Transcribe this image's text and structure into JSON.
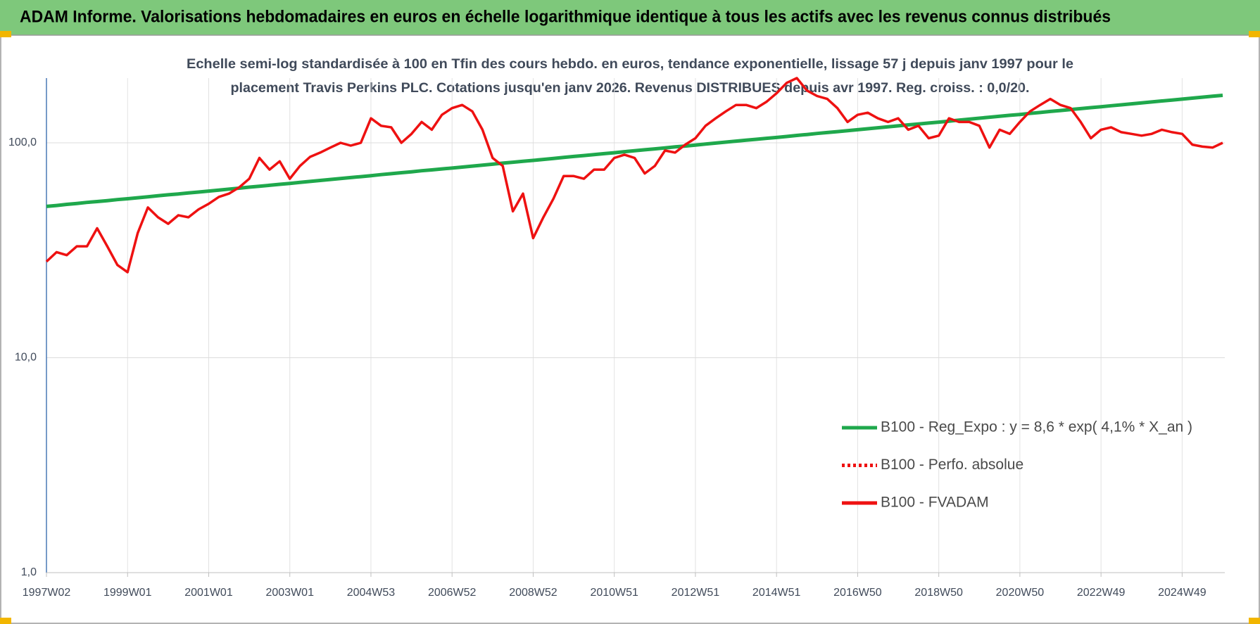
{
  "header": "ADAM Informe. Valorisations hebdomadaires en euros en échelle logarithmique identique à tous les actifs avec les revenus connus distribués",
  "chart_data": {
    "type": "line",
    "title": [
      "Echelle semi-log standardisée à 100 en Tfin des cours hebdo. en euros, tendance exponentielle, lissage 57 j depuis janv 1997 pour le",
      "placement Travis Perkins PLC. Cotations jusqu'en janv 2026. Revenus DISTRIBUES depuis avr 1997. Reg. croiss. : 0,0/20."
    ],
    "log_scale": true,
    "grid": true,
    "legend": "lower right",
    "ylim": [
      1,
      200
    ],
    "yticks": [
      {
        "value": 1,
        "label": "1,0"
      },
      {
        "value": 10,
        "label": "10,0"
      },
      {
        "value": 100,
        "label": "100,0"
      }
    ],
    "categories": [
      "1997W02",
      null,
      null,
      null,
      null,
      null,
      null,
      null,
      "1999W01",
      null,
      null,
      null,
      null,
      null,
      null,
      null,
      "2001W01",
      null,
      null,
      null,
      null,
      null,
      null,
      null,
      "2003W01",
      null,
      null,
      null,
      null,
      null,
      null,
      null,
      "2004W53",
      null,
      null,
      null,
      null,
      null,
      null,
      null,
      "2006W52",
      null,
      null,
      null,
      null,
      null,
      null,
      null,
      "2008W52",
      null,
      null,
      null,
      null,
      null,
      null,
      null,
      "2010W51",
      null,
      null,
      null,
      null,
      null,
      null,
      null,
      "2012W51",
      null,
      null,
      null,
      null,
      null,
      null,
      null,
      "2014W51",
      null,
      null,
      null,
      null,
      null,
      null,
      null,
      "2016W50",
      null,
      null,
      null,
      null,
      null,
      null,
      null,
      "2018W50",
      null,
      null,
      null,
      null,
      null,
      null,
      null,
      "2020W50",
      null,
      null,
      null,
      null,
      null,
      null,
      null,
      "2022W49",
      null,
      null,
      null,
      null,
      null,
      null,
      null,
      "2024W49",
      null,
      null,
      null,
      null
    ],
    "series": [
      {
        "name": "B100 - Reg_Expo : y = 8,6 * exp( 4,1% *  X_an )",
        "color": "#1fa84c",
        "dash": "solid",
        "values": [
          50.6,
          51.1,
          51.7,
          52.2,
          52.8,
          53.3,
          53.8,
          54.4,
          54.9,
          55.5,
          56.1,
          56.7,
          57.3,
          57.8,
          58.4,
          59.0,
          59.6,
          60.2,
          60.9,
          61.5,
          62.2,
          62.8,
          63.4,
          64.1,
          64.7,
          65.4,
          66.1,
          66.8,
          67.5,
          68.2,
          68.9,
          69.6,
          70.3,
          71.1,
          71.8,
          72.6,
          73.3,
          74.1,
          74.8,
          75.6,
          76.3,
          77.1,
          77.9,
          78.7,
          79.5,
          80.4,
          81.2,
          82.0,
          82.8,
          83.7,
          84.6,
          85.5,
          86.4,
          87.2,
          88.1,
          89.0,
          89.9,
          90.9,
          91.8,
          92.8,
          93.7,
          94.7,
          95.7,
          96.6,
          97.6,
          98.6,
          99.7,
          100.7,
          101.8,
          102.8,
          103.8,
          104.9,
          105.9,
          107.0,
          108.2,
          109.3,
          110.5,
          111.6,
          112.7,
          113.9,
          115.0,
          116.2,
          117.5,
          118.7,
          119.9,
          121.2,
          122.4,
          123.6,
          124.8,
          126.1,
          127.5,
          128.8,
          130.2,
          131.5,
          132.8,
          134.2,
          135.5,
          137.0,
          138.4,
          139.9,
          141.3,
          142.8,
          144.2,
          145.7,
          147.1,
          148.7,
          150.2,
          151.8,
          153.3,
          154.9,
          156.5,
          158.0,
          159.6,
          161.3,
          163.0,
          164.6,
          166.3
        ]
      },
      {
        "name": "B100 - Perfo. absolue",
        "color": "#ee1111",
        "dash": "dotted",
        "values": [
          null,
          null,
          null,
          null,
          null,
          null,
          null,
          null,
          null,
          null,
          null,
          null,
          null,
          null,
          null,
          null,
          null,
          null,
          null,
          null,
          null,
          null,
          null,
          null,
          null,
          null,
          null,
          null,
          null,
          null,
          null,
          null,
          null,
          null,
          null,
          null,
          null,
          null,
          null,
          null,
          null,
          null,
          null,
          null,
          null,
          null,
          null,
          null,
          null,
          null,
          null,
          null,
          null,
          null,
          null,
          null,
          null,
          null,
          null,
          null,
          null,
          null,
          null,
          null,
          null,
          null,
          null,
          null,
          null,
          null,
          null,
          null,
          null,
          null,
          null,
          null,
          null,
          null,
          null,
          null,
          null,
          null,
          null,
          null,
          null,
          null,
          null,
          null,
          null,
          null,
          null,
          null,
          null,
          null,
          null,
          null,
          null,
          null,
          null,
          null,
          null,
          null,
          null,
          null,
          null,
          null,
          null,
          null,
          null,
          null,
          null,
          null,
          null,
          null,
          null,
          null,
          null
        ]
      },
      {
        "name": "B100 - FVADAM",
        "color": "#ee1111",
        "dash": "solid",
        "values": [
          28,
          31,
          30,
          33,
          33,
          40,
          33,
          27,
          25,
          38,
          50,
          45,
          42,
          46,
          45,
          49,
          52,
          56,
          58,
          62,
          68,
          85,
          75,
          82,
          68,
          78,
          86,
          90,
          95,
          100,
          97,
          100,
          130,
          120,
          118,
          100,
          110,
          125,
          115,
          135,
          145,
          150,
          140,
          115,
          85,
          78,
          48,
          58,
          36,
          45,
          55,
          70,
          70,
          68,
          75,
          75,
          85,
          88,
          85,
          72,
          78,
          92,
          90,
          98,
          105,
          120,
          130,
          140,
          150,
          150,
          145,
          155,
          170,
          190,
          200,
          175,
          165,
          160,
          145,
          125,
          135,
          138,
          130,
          125,
          130,
          115,
          120,
          105,
          108,
          130,
          125,
          125,
          120,
          95,
          115,
          110,
          125,
          140,
          150,
          160,
          150,
          145,
          125,
          105,
          115,
          118,
          112,
          110,
          108,
          110,
          115,
          112,
          110,
          98,
          96,
          95,
          100
        ]
      }
    ]
  }
}
